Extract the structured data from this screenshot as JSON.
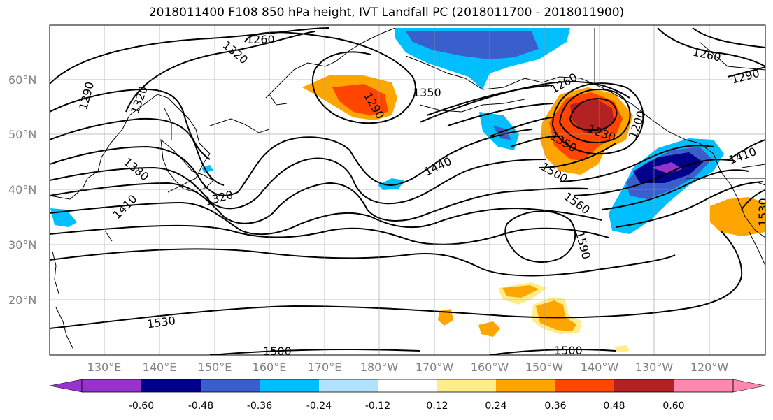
{
  "title": "2018011400 F108 850 hPa height, IVT Landfall PC (2018011700 - 2018011900)",
  "lat_labels": [
    "60°N",
    "50°N",
    "40°N",
    "30°N",
    "20°N"
  ],
  "lon_labels": [
    "130°E",
    "140°E",
    "150°E",
    "160°E",
    "170°E",
    "180°W",
    "170°W",
    "160°W",
    "150°W",
    "140°W",
    "130°W",
    "120°W"
  ],
  "contour_labels": [
    "1260",
    "1260",
    "1290",
    "1290",
    "1320",
    "1320",
    "1350",
    "1260",
    "1290",
    "1230",
    "1200",
    "1350",
    "1410",
    "1530",
    "1380",
    "1440",
    "1320",
    "1500",
    "1560",
    "1590",
    "1410",
    "1530",
    "1500",
    "1500"
  ],
  "colorbar": {
    "ticks": [
      "-0.60",
      "-0.48",
      "-0.36",
      "-0.24",
      "-0.12",
      "0.12",
      "0.24",
      "0.36",
      "0.48",
      "0.60"
    ],
    "colors": [
      "#9932CC",
      "#00008B",
      "#3A5FCD",
      "#00BFFF",
      "#B0E2FF",
      "#FFFFFF",
      "#FFEC8B",
      "#FFA500",
      "#FF4500",
      "#B22222",
      "#FF88B0"
    ]
  }
}
